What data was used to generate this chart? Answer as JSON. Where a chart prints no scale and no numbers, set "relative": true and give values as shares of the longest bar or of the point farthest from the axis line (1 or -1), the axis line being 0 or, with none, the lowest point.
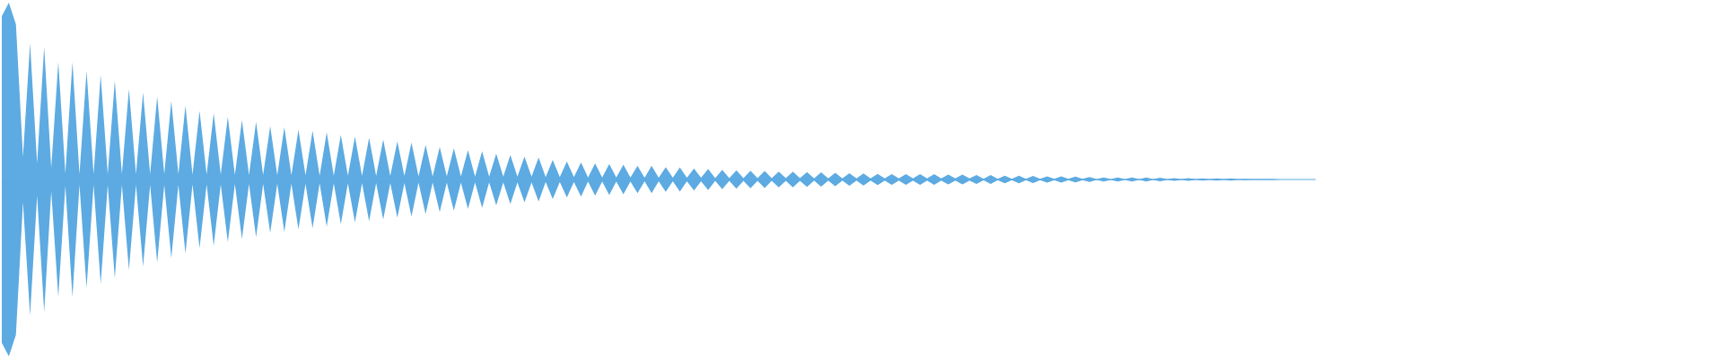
{
  "chart_data": {
    "type": "area",
    "relative": true,
    "categories": [
      null,
      null,
      null,
      null,
      null,
      null,
      null,
      null,
      null,
      null,
      null,
      null,
      null,
      null,
      null,
      null,
      null,
      null,
      null,
      null,
      null,
      null,
      null,
      null,
      null,
      null,
      null,
      null,
      null,
      null,
      null,
      null,
      null,
      null,
      null,
      null,
      null,
      null,
      null,
      null,
      null,
      null,
      null,
      null,
      null,
      null,
      null,
      null,
      null,
      null,
      null,
      null,
      null,
      null,
      null,
      null,
      null,
      null,
      null,
      null,
      null,
      null,
      null,
      null,
      null,
      null,
      null,
      null,
      null,
      null,
      null,
      null,
      null,
      null,
      null,
      null,
      null,
      null,
      null,
      null,
      null,
      null,
      null,
      null,
      null,
      null,
      null,
      null,
      null,
      null,
      null,
      null,
      null,
      null,
      null,
      null,
      null,
      null,
      null,
      null,
      null,
      null,
      null,
      null,
      null,
      null,
      null,
      null,
      null,
      null,
      null,
      null,
      null,
      null,
      null,
      null,
      null,
      null,
      null,
      null,
      null,
      null,
      null,
      null,
      null,
      null,
      null,
      null,
      null,
      null,
      null,
      null,
      null,
      null,
      null,
      null,
      null,
      null,
      null,
      null,
      null,
      null,
      null,
      null,
      null,
      null,
      null,
      null,
      null,
      null,
      null,
      null,
      null,
      null,
      null,
      null,
      null,
      null,
      null,
      null,
      null,
      null,
      null,
      null,
      null,
      null,
      null,
      null,
      null,
      null,
      null,
      null,
      null,
      null,
      null,
      null,
      null,
      null,
      null,
      null,
      null,
      null,
      null,
      null,
      null,
      null,
      null
    ],
    "series": [
      {
        "color": "#5dabe2",
        "values": [
          0.924,
          1,
          0.878,
          0.128,
          0.77,
          0.092,
          0.75,
          0.066,
          0.664,
          0.036,
          0.664,
          0.03,
          0.614,
          0.03,
          0.592,
          0.03,
          0.558,
          0.03,
          0.512,
          0.03,
          0.492,
          0.03,
          0.47,
          0.03,
          0.444,
          0.03,
          0.418,
          0.028,
          0.388,
          0.028,
          0.374,
          0.028,
          0.354,
          0.026,
          0.336,
          0.026,
          0.326,
          0.026,
          0.302,
          0.024,
          0.296,
          0.024,
          0.282,
          0.024,
          0.276,
          0.022,
          0.266,
          0.022,
          0.252,
          0.022,
          0.242,
          0.02,
          0.236,
          0.02,
          0.226,
          0.02,
          0.216,
          0.02,
          0.21,
          0.018,
          0.196,
          0.018,
          0.184,
          0.018,
          0.176,
          0.018,
          0.166,
          0.016,
          0.16,
          0.016,
          0.146,
          0.016,
          0.138,
          0.016,
          0.13,
          0.016,
          0.124,
          0.014,
          0.11,
          0.014,
          0.102,
          0.014,
          0.096,
          0.012,
          0.092,
          0.012,
          0.088,
          0.012,
          0.084,
          0.012,
          0.078,
          0.01,
          0.078,
          0.01,
          0.07,
          0.01,
          0.068,
          0.01,
          0.062,
          0.01,
          0.06,
          0.008,
          0.054,
          0.008,
          0.052,
          0.008,
          0.05,
          0.008,
          0.048,
          0.008,
          0.044,
          0.008,
          0.044,
          0.008,
          0.042,
          0.006,
          0.04,
          0.006,
          0.038,
          0.006,
          0.036,
          0.006,
          0.034,
          0.006,
          0.032,
          0.006,
          0.03,
          0.006,
          0.03,
          0.006,
          0.03,
          0.006,
          0.03,
          0.006,
          0.028,
          0.006,
          0.028,
          0.006,
          0.026,
          0.004,
          0.026,
          0.004,
          0.022,
          0.004,
          0.022,
          0.004,
          0.02,
          0.004,
          0.018,
          0.004,
          0.018,
          0.004,
          0.016,
          0.004,
          0.014,
          0.002,
          0.012,
          0.002,
          0.012,
          0.002,
          0.012,
          0.002,
          0.012,
          0.002,
          0.01,
          0.002,
          0.008,
          0.002,
          0.008,
          0.002,
          0.006,
          0.002,
          0.006,
          0.002,
          0.006,
          0.002,
          0.004,
          0.002,
          0.002,
          0.002,
          0.002,
          0,
          0,
          0,
          0,
          0,
          0
        ]
      },
      {
        "color": "#5caae1",
        "values": [
          -0.924,
          -1,
          -0.878,
          -0.128,
          -0.77,
          -0.092,
          -0.75,
          -0.066,
          -0.664,
          -0.036,
          -0.664,
          -0.03,
          -0.614,
          -0.03,
          -0.592,
          -0.03,
          -0.558,
          -0.03,
          -0.512,
          -0.03,
          -0.492,
          -0.03,
          -0.47,
          -0.03,
          -0.444,
          -0.03,
          -0.418,
          -0.028,
          -0.388,
          -0.028,
          -0.374,
          -0.028,
          -0.354,
          -0.026,
          -0.336,
          -0.026,
          -0.326,
          -0.026,
          -0.302,
          -0.024,
          -0.296,
          -0.024,
          -0.282,
          -0.024,
          -0.276,
          -0.022,
          -0.266,
          -0.022,
          -0.252,
          -0.022,
          -0.242,
          -0.02,
          -0.236,
          -0.02,
          -0.226,
          -0.02,
          -0.216,
          -0.02,
          -0.21,
          -0.018,
          -0.196,
          -0.018,
          -0.184,
          -0.018,
          -0.176,
          -0.018,
          -0.166,
          -0.016,
          -0.16,
          -0.016,
          -0.146,
          -0.016,
          -0.138,
          -0.016,
          -0.13,
          -0.016,
          -0.124,
          -0.014,
          -0.11,
          -0.014,
          -0.102,
          -0.014,
          -0.096,
          -0.012,
          -0.092,
          -0.012,
          -0.088,
          -0.012,
          -0.084,
          -0.012,
          -0.078,
          -0.01,
          -0.078,
          -0.01,
          -0.07,
          -0.01,
          -0.068,
          -0.01,
          -0.062,
          -0.01,
          -0.06,
          -0.008,
          -0.054,
          -0.008,
          -0.052,
          -0.008,
          -0.05,
          -0.008,
          -0.048,
          -0.008,
          -0.044,
          -0.008,
          -0.044,
          -0.008,
          -0.042,
          -0.006,
          -0.04,
          -0.006,
          -0.038,
          -0.006,
          -0.036,
          -0.006,
          -0.034,
          -0.006,
          -0.032,
          -0.006,
          -0.03,
          -0.006,
          -0.03,
          -0.006,
          -0.03,
          -0.006,
          -0.03,
          -0.006,
          -0.028,
          -0.006,
          -0.028,
          -0.006,
          -0.026,
          -0.004,
          -0.026,
          -0.004,
          -0.022,
          -0.004,
          -0.022,
          -0.004,
          -0.02,
          -0.004,
          -0.018,
          -0.004,
          -0.018,
          -0.004,
          -0.016,
          -0.004,
          -0.014,
          -0.002,
          -0.012,
          -0.002,
          -0.012,
          -0.002,
          -0.012,
          -0.002,
          -0.012,
          -0.002,
          -0.01,
          -0.002,
          -0.008,
          -0.002,
          -0.008,
          -0.002,
          -0.006,
          -0.002,
          -0.006,
          -0.002,
          -0.006,
          -0.002,
          -0.004,
          -0.002,
          -0.002,
          -0.002,
          -0.002,
          0,
          0,
          0,
          0,
          0,
          0
        ]
      }
    ],
    "ref_lines": [
      {
        "axis": "y",
        "value": 0,
        "color": "#5dabe2"
      }
    ]
  }
}
